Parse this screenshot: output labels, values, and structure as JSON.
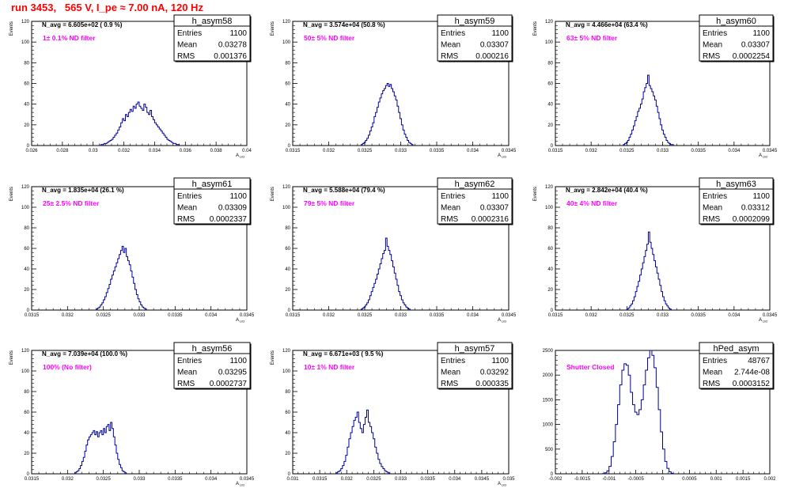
{
  "page": {
    "title": "run 3453,   565 V, I_pe ≈ 7.00 nA, 120 Hz"
  },
  "colors": {
    "title": "#ff0000",
    "histogram_line": "#000099",
    "filter_label": "#ff00ff",
    "text": "#000000"
  },
  "chart_data": [
    {
      "type": "histogram",
      "name": "h_asym58",
      "stats": {
        "entries_label": "Entries",
        "entries": "1100",
        "mean_label": "Mean",
        "mean": "0.03278",
        "rms_label": "RMS",
        "rms": "0.001376"
      },
      "navg": "N_avg = 6.605e+02 ( 0.9 %)",
      "filter": "1± 0.1% ND filter",
      "ylabel": "Events",
      "xlabel": "A_LID",
      "xlim": [
        0.026,
        0.04
      ],
      "ylim": [
        0,
        120
      ],
      "xticks": [
        "0.026",
        "0.028",
        "0.03",
        "0.032",
        "0.034",
        "0.036",
        "0.038",
        "0.04"
      ],
      "yticks": [
        "0",
        "20",
        "40",
        "60",
        "80",
        "100",
        "120"
      ],
      "bin_start": 0.0305,
      "bin_width": 0.0001,
      "counts": [
        1,
        1,
        2,
        2,
        3,
        4,
        5,
        6,
        8,
        10,
        12,
        15,
        18,
        22,
        26,
        24,
        30,
        28,
        32,
        35,
        33,
        38,
        36,
        40,
        42,
        38,
        36,
        34,
        40,
        37,
        32,
        30,
        34,
        28,
        25,
        22,
        20,
        18,
        16,
        14,
        12,
        10,
        8,
        6,
        5,
        4,
        3,
        2,
        2,
        1,
        1
      ]
    },
    {
      "type": "histogram",
      "name": "h_asym59",
      "stats": {
        "entries_label": "Entries",
        "entries": "1100",
        "mean_label": "Mean",
        "mean": "0.03307",
        "rms_label": "RMS",
        "rms": "0.000216"
      },
      "navg": "N_avg = 3.574e+04 (50.8 %)",
      "filter": "50± 5% ND filter",
      "ylabel": "Events",
      "xlabel": "A_LID",
      "xlim": [
        0.0315,
        0.0345
      ],
      "ylim": [
        0,
        120
      ],
      "xticks": [
        "0.0315",
        "0.032",
        "0.0325",
        "0.033",
        "0.0335",
        "0.034",
        "0.0345"
      ],
      "yticks": [
        "0",
        "20",
        "40",
        "60",
        "80",
        "100",
        "120"
      ],
      "bin_start": 0.03245,
      "bin_width": 2e-05,
      "counts": [
        1,
        2,
        3,
        5,
        7,
        10,
        14,
        18,
        22,
        28,
        32,
        37,
        42,
        46,
        50,
        53,
        55,
        58,
        60,
        57,
        59,
        55,
        52,
        48,
        44,
        38,
        32,
        26,
        20,
        15,
        11,
        8,
        5,
        3,
        2,
        1
      ]
    },
    {
      "type": "histogram",
      "name": "h_asym60",
      "stats": {
        "entries_label": "Entries",
        "entries": "1100",
        "mean_label": "Mean",
        "mean": "0.03307",
        "rms_label": "RMS",
        "rms": "0.0002254"
      },
      "navg": "N_avg = 4.466e+04 (63.4 %)",
      "filter": "63± 5% ND filter",
      "ylabel": "Events",
      "xlabel": "A_LID",
      "xlim": [
        0.0315,
        0.0345
      ],
      "ylim": [
        0,
        120
      ],
      "xticks": [
        "0.0315",
        "0.032",
        "0.0325",
        "0.033",
        "0.0335",
        "0.034",
        "0.0345"
      ],
      "yticks": [
        "0",
        "20",
        "40",
        "60",
        "80",
        "100",
        "120"
      ],
      "bin_start": 0.03245,
      "bin_width": 2e-05,
      "counts": [
        1,
        2,
        3,
        5,
        8,
        11,
        15,
        19,
        24,
        28,
        33,
        36,
        40,
        45,
        52,
        56,
        60,
        68,
        58,
        55,
        52,
        48,
        44,
        38,
        32,
        26,
        20,
        15,
        11,
        8,
        5,
        3,
        2,
        1,
        1
      ]
    },
    {
      "type": "histogram",
      "name": "h_asym61",
      "stats": {
        "entries_label": "Entries",
        "entries": "1100",
        "mean_label": "Mean",
        "mean": "0.03309",
        "rms_label": "RMS",
        "rms": "0.0002337"
      },
      "navg": "N_avg = 1.835e+04 (26.1 %)",
      "filter": "25± 2.5% ND filter",
      "ylabel": "Events",
      "xlabel": "A_LID",
      "xlim": [
        0.0315,
        0.0345
      ],
      "ylim": [
        0,
        120
      ],
      "xticks": [
        "0.0315",
        "0.032",
        "0.0325",
        "0.033",
        "0.0335",
        "0.034",
        "0.0345"
      ],
      "yticks": [
        "0",
        "20",
        "40",
        "60",
        "80",
        "100",
        "120"
      ],
      "bin_start": 0.0324,
      "bin_width": 2e-05,
      "counts": [
        1,
        2,
        3,
        5,
        7,
        10,
        13,
        17,
        21,
        25,
        30,
        34,
        38,
        42,
        46,
        50,
        54,
        58,
        62,
        56,
        60,
        52,
        48,
        44,
        38,
        32,
        26,
        20,
        15,
        11,
        8,
        5,
        3,
        2,
        1
      ]
    },
    {
      "type": "histogram",
      "name": "h_asym62",
      "stats": {
        "entries_label": "Entries",
        "entries": "1100",
        "mean_label": "Mean",
        "mean": "0.03307",
        "rms_label": "RMS",
        "rms": "0.0002316"
      },
      "navg": "N_avg = 5.588e+04 (79.4 %)",
      "filter": "79± 5% ND filter",
      "ylabel": "Events",
      "xlabel": "A_LID",
      "xlim": [
        0.0315,
        0.0345
      ],
      "ylim": [
        0,
        120
      ],
      "xticks": [
        "0.0315",
        "0.032",
        "0.0325",
        "0.033",
        "0.0335",
        "0.034",
        "0.0345"
      ],
      "yticks": [
        "0",
        "20",
        "40",
        "60",
        "80",
        "100",
        "120"
      ],
      "bin_start": 0.03245,
      "bin_width": 2e-05,
      "counts": [
        1,
        2,
        3,
        5,
        7,
        10,
        14,
        18,
        22,
        26,
        30,
        35,
        40,
        45,
        50,
        55,
        58,
        70,
        62,
        58,
        54,
        48,
        42,
        36,
        30,
        24,
        18,
        14,
        10,
        7,
        5,
        3,
        2,
        1
      ]
    },
    {
      "type": "histogram",
      "name": "h_asym63",
      "stats": {
        "entries_label": "Entries",
        "entries": "1100",
        "mean_label": "Mean",
        "mean": "0.03312",
        "rms_label": "RMS",
        "rms": "0.0002099"
      },
      "navg": "N_avg = 2.842e+04 (40.4 %)",
      "filter": "40± 4% ND filter",
      "ylabel": "Events",
      "xlabel": "A_LID",
      "xlim": [
        0.0315,
        0.0345
      ],
      "ylim": [
        0,
        120
      ],
      "xticks": [
        "0.0315",
        "0.032",
        "0.0325",
        "0.033",
        "0.0335",
        "0.034",
        "0.0345"
      ],
      "yticks": [
        "0",
        "20",
        "40",
        "60",
        "80",
        "100",
        "120"
      ],
      "bin_start": 0.0325,
      "bin_width": 2e-05,
      "counts": [
        1,
        2,
        4,
        6,
        9,
        13,
        18,
        23,
        28,
        34,
        40,
        46,
        52,
        58,
        64,
        76,
        66,
        60,
        54,
        48,
        42,
        36,
        30,
        24,
        18,
        13,
        9,
        6,
        4,
        2,
        1
      ]
    },
    {
      "type": "histogram",
      "name": "h_asym56",
      "stats": {
        "entries_label": "Entries",
        "entries": "1100",
        "mean_label": "Mean",
        "mean": "0.03295",
        "rms_label": "RMS",
        "rms": "0.0002737"
      },
      "navg": "N_avg = 7.039e+04 (100.0 %)",
      "filter": "100% (No filter)",
      "ylabel": "Events",
      "xlabel": "A_LID",
      "xlim": [
        0.0315,
        0.0345
      ],
      "ylim": [
        0,
        120
      ],
      "xticks": [
        "0.0315",
        "0.032",
        "0.0325",
        "0.033",
        "0.0335",
        "0.034",
        "0.0345"
      ],
      "yticks": [
        "0",
        "20",
        "40",
        "60",
        "80",
        "100",
        "120"
      ],
      "bin_start": 0.0321,
      "bin_width": 2e-05,
      "counts": [
        1,
        2,
        3,
        5,
        8,
        12,
        16,
        22,
        28,
        33,
        36,
        38,
        40,
        42,
        38,
        41,
        36,
        40,
        42,
        38,
        44,
        40,
        46,
        48,
        42,
        50,
        44,
        36,
        28,
        20,
        14,
        9,
        6,
        3,
        2,
        1
      ]
    },
    {
      "type": "histogram",
      "name": "h_asym57",
      "stats": {
        "entries_label": "Entries",
        "entries": "1100",
        "mean_label": "Mean",
        "mean": "0.03292",
        "rms_label": "RMS",
        "rms": "0.000335"
      },
      "navg": "N_avg = 6.671e+03 ( 9.5 %)",
      "filter": "10± 1% ND filter",
      "ylabel": "Events",
      "xlabel": "A_LID",
      "xlim": [
        0.031,
        0.035
      ],
      "ylim": [
        0,
        120
      ],
      "xticks": [
        "0.031",
        "0.0315",
        "0.032",
        "0.0325",
        "0.033",
        "0.0335",
        "0.034",
        "0.0345",
        "0.035"
      ],
      "yticks": [
        "0",
        "20",
        "40",
        "60",
        "80",
        "100",
        "120"
      ],
      "bin_start": 0.0318,
      "bin_width": 3e-05,
      "counts": [
        1,
        2,
        3,
        5,
        8,
        12,
        18,
        26,
        34,
        40,
        46,
        52,
        55,
        60,
        50,
        44,
        40,
        48,
        55,
        62,
        50,
        46,
        40,
        34,
        26,
        20,
        14,
        10,
        7,
        5,
        3,
        2,
        1
      ]
    },
    {
      "type": "histogram",
      "name": "hPed_asym",
      "stats": {
        "entries_label": "Entries",
        "entries": "48767",
        "mean_label": "Mean",
        "mean": "2.744e-08",
        "rms_label": "RMS",
        "rms": "0.0003152"
      },
      "navg": "",
      "filter": "Shutter Closed",
      "ylabel": "",
      "xlabel": "",
      "xlim": [
        -0.002,
        0.002
      ],
      "ylim": [
        0,
        2500
      ],
      "xticks": [
        "-0.002",
        "-0.0015",
        "-0.001",
        "-0.0005",
        "0",
        "0.0005",
        "0.001",
        "0.0015",
        "0.002"
      ],
      "yticks": [
        "0",
        "500",
        "1000",
        "1500",
        "2000",
        "2500"
      ],
      "bin_start": -0.00112,
      "bin_width": 4e-05,
      "counts": [
        5,
        20,
        60,
        150,
        350,
        650,
        1000,
        1400,
        1800,
        2100,
        2230,
        2200,
        2000,
        1650,
        1400,
        1250,
        1200,
        1300,
        1500,
        1800,
        2100,
        2350,
        2500,
        2400,
        2150,
        1750,
        1300,
        850,
        500,
        250,
        110,
        40,
        10
      ]
    }
  ]
}
